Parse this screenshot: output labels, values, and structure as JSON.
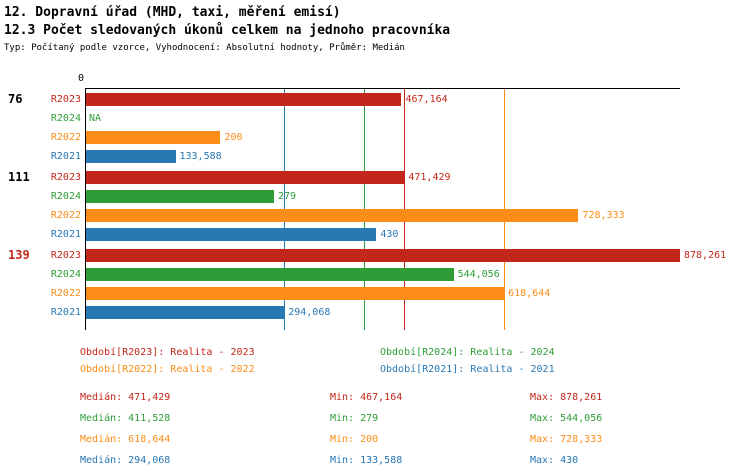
{
  "header": {
    "title_line1": "12. Dopravní úřad (MHD, taxi, měření emisí)",
    "title_line2": "12.3 Počet sledovaných úkonů celkem na jednoho pracovníka",
    "meta": "Typ: Počítaný podle vzorce, Vyhodnocení: Absolutní hodnoty, Průměr: Medián"
  },
  "chart_data": {
    "type": "bar",
    "orientation": "horizontal",
    "axis": {
      "origin_label": "0",
      "min": 0,
      "max_value": 878.261
    },
    "series": [
      "R2023",
      "R2024",
      "R2022",
      "R2021"
    ],
    "series_colors": {
      "R2023": "#c3271b",
      "R2024": "#2f9c38",
      "R2022": "#fb8c17",
      "R2021": "#2878b4"
    },
    "groups": [
      {
        "id": "76",
        "id_color": "#000000",
        "bars": [
          {
            "series": "R2023",
            "value": 467.164,
            "label": "467,164"
          },
          {
            "series": "R2024",
            "value": null,
            "label": "NA"
          },
          {
            "series": "R2022",
            "value": 200,
            "label": "200"
          },
          {
            "series": "R2021",
            "value": 133.588,
            "label": "133,588"
          }
        ]
      },
      {
        "id": "111",
        "id_color": "#000000",
        "bars": [
          {
            "series": "R2023",
            "value": 471.429,
            "label": "471,429"
          },
          {
            "series": "R2024",
            "value": 279,
            "label": "279"
          },
          {
            "series": "R2022",
            "value": 728.333,
            "label": "728,333"
          },
          {
            "series": "R2021",
            "value": 430,
            "label": "430"
          }
        ]
      },
      {
        "id": "139",
        "id_color": "#c3271b",
        "bars": [
          {
            "series": "R2023",
            "value": 878.261,
            "label": "878,261"
          },
          {
            "series": "R2024",
            "value": 544.056,
            "label": "544,056"
          },
          {
            "series": "R2022",
            "value": 618.644,
            "label": "618,644"
          },
          {
            "series": "R2021",
            "value": 294.068,
            "label": "294,068"
          }
        ]
      }
    ],
    "median_lines": [
      {
        "series": "R2023",
        "value": 471.429
      },
      {
        "series": "R2024",
        "value": 411.528
      },
      {
        "series": "R2022",
        "value": 618.644
      },
      {
        "series": "R2021",
        "value": 294.068
      }
    ]
  },
  "legend": [
    {
      "series": "R2023",
      "label": "Období[R2023]: Realita - 2023"
    },
    {
      "series": "R2024",
      "label": "Období[R2024]: Realita - 2024"
    },
    {
      "series": "R2022",
      "label": "Období[R2022]: Realita - 2022"
    },
    {
      "series": "R2021",
      "label": "Období[R2021]: Realita - 2021"
    }
  ],
  "stats": [
    {
      "series": "R2023",
      "median": "Medián: 471,429",
      "min": "Min: 467,164",
      "max": "Max: 878,261"
    },
    {
      "series": "R2024",
      "median": "Medián: 411,528",
      "min": "Min: 279",
      "max": "Max: 544,056"
    },
    {
      "series": "R2022",
      "median": "Medián: 618,644",
      "min": "Min: 200",
      "max": "Max: 728,333"
    },
    {
      "series": "R2021",
      "median": "Medián: 294,068",
      "min": "Min: 133,588",
      "max": "Max: 430"
    }
  ]
}
